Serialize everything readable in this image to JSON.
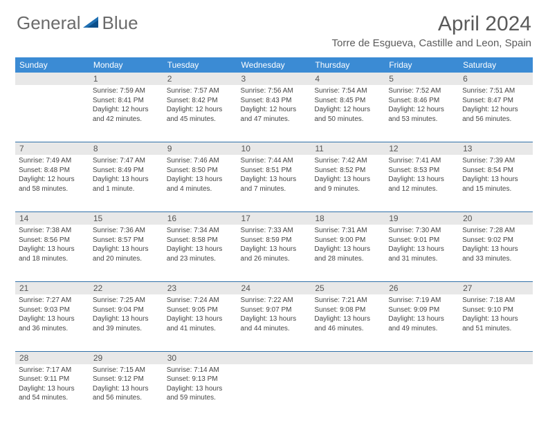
{
  "logo": {
    "part1": "General",
    "part2": "Blue"
  },
  "title": "April 2024",
  "location": "Torre de Esgueva, Castille and Leon, Spain",
  "colors": {
    "header_bg": "#3b8bd4",
    "header_text": "#ffffff",
    "daynum_bg": "#e8e8e8",
    "week_border": "#2e6fa8",
    "text": "#444444",
    "logo_gray": "#6b6b6b",
    "logo_blue": "#1f6fb2"
  },
  "day_headers": [
    "Sunday",
    "Monday",
    "Tuesday",
    "Wednesday",
    "Thursday",
    "Friday",
    "Saturday"
  ],
  "weeks": [
    {
      "nums": [
        "",
        "1",
        "2",
        "3",
        "4",
        "5",
        "6"
      ],
      "cells": [
        null,
        {
          "sunrise": "7:59 AM",
          "sunset": "8:41 PM",
          "daylight": "12 hours and 42 minutes."
        },
        {
          "sunrise": "7:57 AM",
          "sunset": "8:42 PM",
          "daylight": "12 hours and 45 minutes."
        },
        {
          "sunrise": "7:56 AM",
          "sunset": "8:43 PM",
          "daylight": "12 hours and 47 minutes."
        },
        {
          "sunrise": "7:54 AM",
          "sunset": "8:45 PM",
          "daylight": "12 hours and 50 minutes."
        },
        {
          "sunrise": "7:52 AM",
          "sunset": "8:46 PM",
          "daylight": "12 hours and 53 minutes."
        },
        {
          "sunrise": "7:51 AM",
          "sunset": "8:47 PM",
          "daylight": "12 hours and 56 minutes."
        }
      ]
    },
    {
      "nums": [
        "7",
        "8",
        "9",
        "10",
        "11",
        "12",
        "13"
      ],
      "cells": [
        {
          "sunrise": "7:49 AM",
          "sunset": "8:48 PM",
          "daylight": "12 hours and 58 minutes."
        },
        {
          "sunrise": "7:47 AM",
          "sunset": "8:49 PM",
          "daylight": "13 hours and 1 minute."
        },
        {
          "sunrise": "7:46 AM",
          "sunset": "8:50 PM",
          "daylight": "13 hours and 4 minutes."
        },
        {
          "sunrise": "7:44 AM",
          "sunset": "8:51 PM",
          "daylight": "13 hours and 7 minutes."
        },
        {
          "sunrise": "7:42 AM",
          "sunset": "8:52 PM",
          "daylight": "13 hours and 9 minutes."
        },
        {
          "sunrise": "7:41 AM",
          "sunset": "8:53 PM",
          "daylight": "13 hours and 12 minutes."
        },
        {
          "sunrise": "7:39 AM",
          "sunset": "8:54 PM",
          "daylight": "13 hours and 15 minutes."
        }
      ]
    },
    {
      "nums": [
        "14",
        "15",
        "16",
        "17",
        "18",
        "19",
        "20"
      ],
      "cells": [
        {
          "sunrise": "7:38 AM",
          "sunset": "8:56 PM",
          "daylight": "13 hours and 18 minutes."
        },
        {
          "sunrise": "7:36 AM",
          "sunset": "8:57 PM",
          "daylight": "13 hours and 20 minutes."
        },
        {
          "sunrise": "7:34 AM",
          "sunset": "8:58 PM",
          "daylight": "13 hours and 23 minutes."
        },
        {
          "sunrise": "7:33 AM",
          "sunset": "8:59 PM",
          "daylight": "13 hours and 26 minutes."
        },
        {
          "sunrise": "7:31 AM",
          "sunset": "9:00 PM",
          "daylight": "13 hours and 28 minutes."
        },
        {
          "sunrise": "7:30 AM",
          "sunset": "9:01 PM",
          "daylight": "13 hours and 31 minutes."
        },
        {
          "sunrise": "7:28 AM",
          "sunset": "9:02 PM",
          "daylight": "13 hours and 33 minutes."
        }
      ]
    },
    {
      "nums": [
        "21",
        "22",
        "23",
        "24",
        "25",
        "26",
        "27"
      ],
      "cells": [
        {
          "sunrise": "7:27 AM",
          "sunset": "9:03 PM",
          "daylight": "13 hours and 36 minutes."
        },
        {
          "sunrise": "7:25 AM",
          "sunset": "9:04 PM",
          "daylight": "13 hours and 39 minutes."
        },
        {
          "sunrise": "7:24 AM",
          "sunset": "9:05 PM",
          "daylight": "13 hours and 41 minutes."
        },
        {
          "sunrise": "7:22 AM",
          "sunset": "9:07 PM",
          "daylight": "13 hours and 44 minutes."
        },
        {
          "sunrise": "7:21 AM",
          "sunset": "9:08 PM",
          "daylight": "13 hours and 46 minutes."
        },
        {
          "sunrise": "7:19 AM",
          "sunset": "9:09 PM",
          "daylight": "13 hours and 49 minutes."
        },
        {
          "sunrise": "7:18 AM",
          "sunset": "9:10 PM",
          "daylight": "13 hours and 51 minutes."
        }
      ]
    },
    {
      "nums": [
        "28",
        "29",
        "30",
        "",
        "",
        "",
        ""
      ],
      "cells": [
        {
          "sunrise": "7:17 AM",
          "sunset": "9:11 PM",
          "daylight": "13 hours and 54 minutes."
        },
        {
          "sunrise": "7:15 AM",
          "sunset": "9:12 PM",
          "daylight": "13 hours and 56 minutes."
        },
        {
          "sunrise": "7:14 AM",
          "sunset": "9:13 PM",
          "daylight": "13 hours and 59 minutes."
        },
        null,
        null,
        null,
        null
      ]
    }
  ],
  "labels": {
    "sunrise": "Sunrise:",
    "sunset": "Sunset:",
    "daylight": "Daylight:"
  }
}
